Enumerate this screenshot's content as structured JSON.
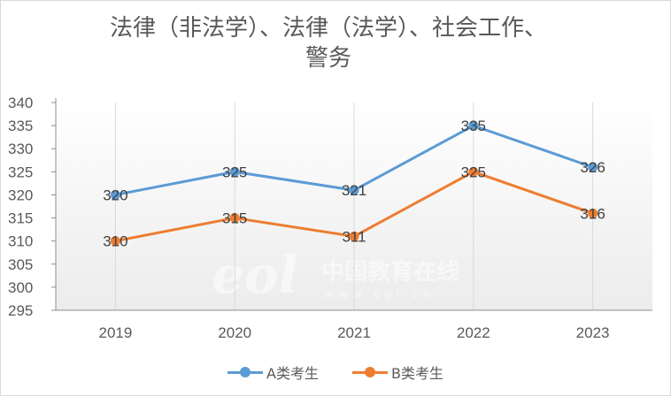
{
  "chart_data": {
    "type": "line",
    "title": "法律（非法学）、法律（法学）、社会工作、警务",
    "title_lines": [
      "法律（非法学）、法律（法学）、社会工作、",
      "警务"
    ],
    "categories": [
      "2019",
      "2020",
      "2021",
      "2022",
      "2023"
    ],
    "series": [
      {
        "name": "A类考生",
        "values": [
          320,
          325,
          321,
          335,
          326
        ],
        "color": "#5b9bd5"
      },
      {
        "name": "B类考生",
        "values": [
          310,
          315,
          311,
          325,
          316
        ],
        "color": "#ed7d31"
      }
    ],
    "ylim": [
      295,
      340
    ],
    "ytick_step": 5,
    "grid": "vertical",
    "legend_position": "bottom",
    "xlabel": "",
    "ylabel": ""
  },
  "watermark": {
    "text": "中国教育在线",
    "url": "www.eol.cn",
    "logo": "eol"
  }
}
